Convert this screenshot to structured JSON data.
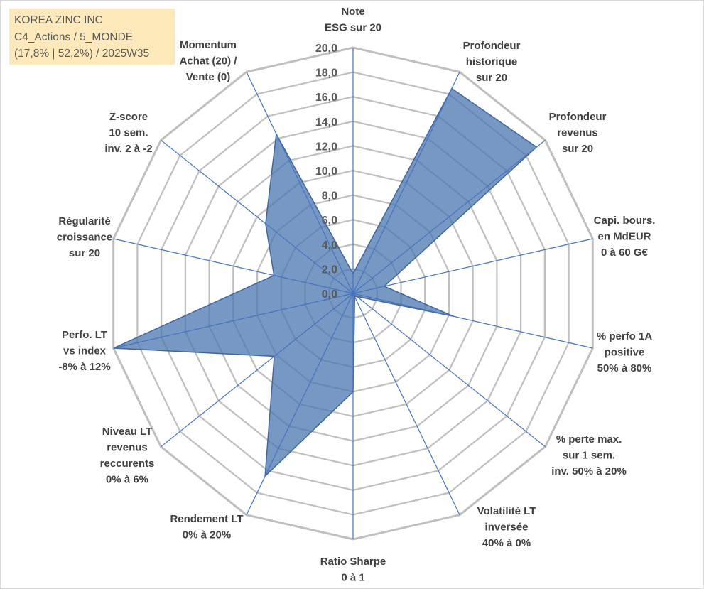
{
  "chart_title": {
    "line1": "KOREA ZINC INC",
    "line2": "C4_Actions / 5_MONDE",
    "line3": "(17,8% | 52,2%) / 2025W35"
  },
  "chart_data": {
    "type": "radar",
    "title": "KOREA ZINC INC",
    "rmin": 0,
    "rmax": 20,
    "tick_step": 2,
    "tick_labels": [
      "0,0",
      "2,0",
      "4,0",
      "6,0",
      "8,0",
      "10,0",
      "12,0",
      "14,0",
      "16,0",
      "18,0",
      "20,0"
    ],
    "grid": true,
    "axes": [
      {
        "label": [
          "Note",
          "ESG sur 20"
        ]
      },
      {
        "label": [
          "Profondeur",
          "historique",
          "sur 20"
        ]
      },
      {
        "label": [
          "Profondeur",
          "revenus",
          "sur 20"
        ]
      },
      {
        "label": [
          "Capi. bours.",
          "en MdEUR",
          "0 à 60 G€"
        ]
      },
      {
        "label": [
          "% perfo 1A",
          "positive",
          "50% à 80%"
        ]
      },
      {
        "label": [
          "% perte max.",
          "sur 1 sem.",
          "inv. 50% à 20%"
        ]
      },
      {
        "label": [
          "Volatilité LT",
          "inversée",
          "40% à 0%"
        ]
      },
      {
        "label": [
          "Ratio Sharpe",
          "0 à 1"
        ]
      },
      {
        "label": [
          "Rendement LT",
          "0% à 20%"
        ]
      },
      {
        "label": [
          "Niveau LT",
          "revenus",
          "reccurents",
          "0% à 6%"
        ]
      },
      {
        "label": [
          "Perfo. LT",
          "vs index",
          "-8% à 12%"
        ]
      },
      {
        "label": [
          "Régularité",
          "croissance",
          "sur 20"
        ]
      },
      {
        "label": [
          "Z-score",
          "10 sem.",
          "inv. 2 à -2"
        ]
      },
      {
        "label": [
          "Momentum",
          "Achat (20) /",
          "Vente (0)"
        ]
      }
    ],
    "series": [
      {
        "values": [
          1.6,
          18.5,
          19.1,
          2.6,
          8.4,
          0.4,
          0.3,
          8.0,
          16.5,
          8.2,
          20.0,
          6.6,
          9.1,
          14.4
        ],
        "color": "#4a76ad",
        "fill_opacity": 0.75
      }
    ],
    "spoke_color": "#4472c4",
    "grid_color": "#bfbfbf"
  }
}
